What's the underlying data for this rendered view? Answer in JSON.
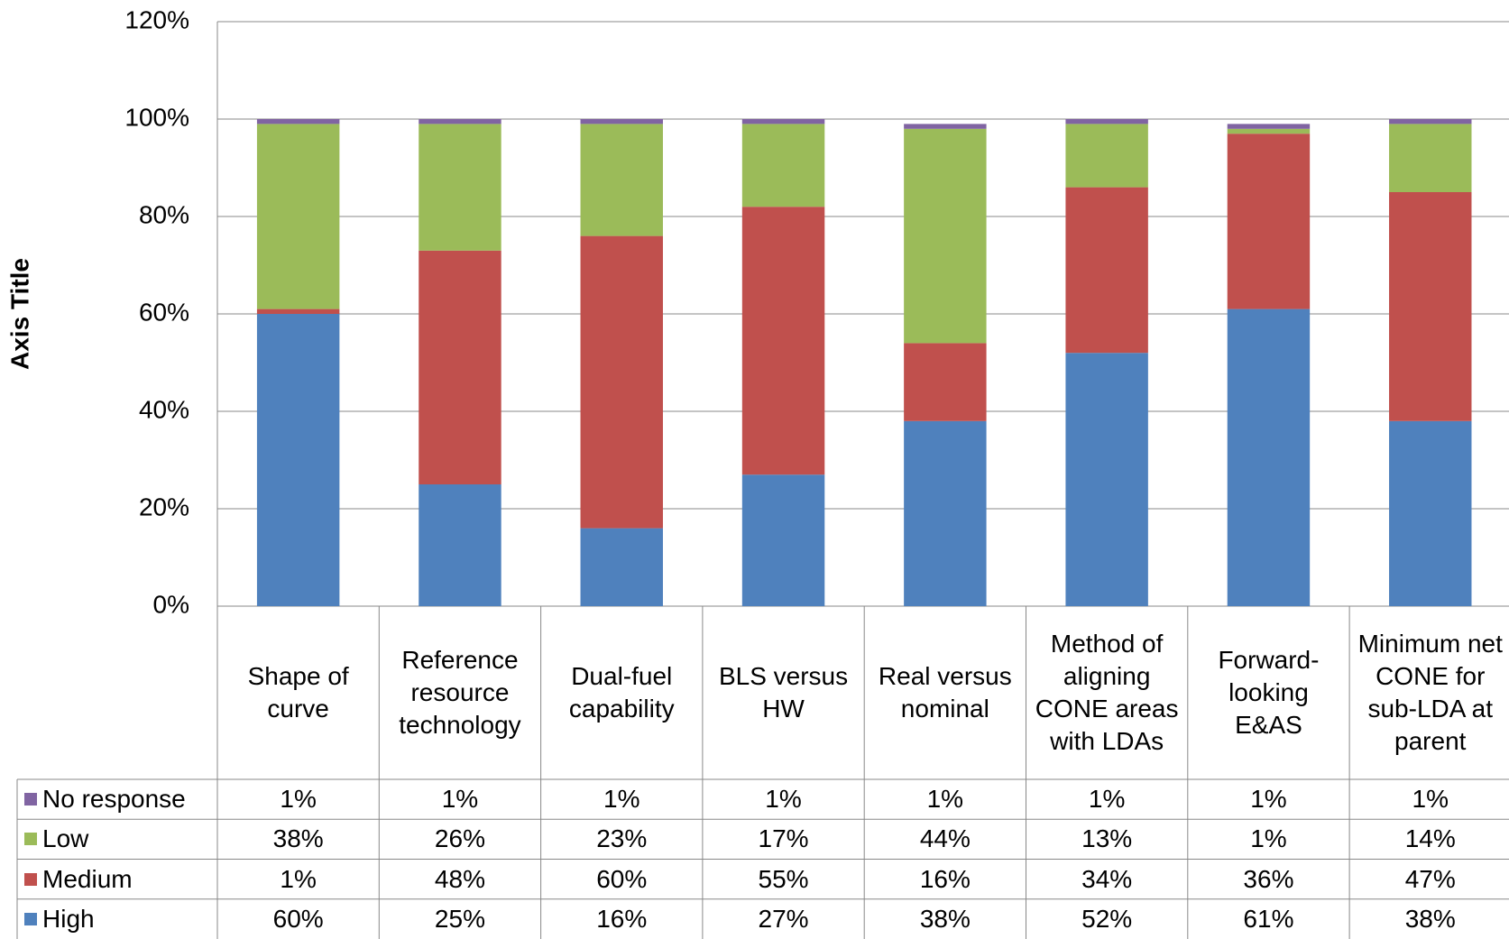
{
  "chart_data": {
    "type": "stacked_bar",
    "y_axis_title": "Axis Title",
    "categories": [
      "Shape of curve",
      "Reference resource technology",
      "Dual-fuel capability",
      "BLS versus HW",
      "Real versus nominal",
      "Method of aligning CONE areas with LDAs",
      "Forward-looking E&AS",
      "Minimum net CONE for sub-LDA at parent"
    ],
    "series": [
      {
        "name": "No response",
        "color": "#8064a2",
        "values": [
          1,
          1,
          1,
          1,
          1,
          1,
          1,
          1
        ],
        "value_labels": [
          "1%",
          "1%",
          "1%",
          "1%",
          "1%",
          "1%",
          "1%",
          "1%"
        ]
      },
      {
        "name": "Low",
        "color": "#9bbb59",
        "values": [
          38,
          26,
          23,
          17,
          44,
          13,
          1,
          14
        ],
        "value_labels": [
          "38%",
          "26%",
          "23%",
          "17%",
          "44%",
          "13%",
          "1%",
          "14%"
        ]
      },
      {
        "name": "Medium",
        "color": "#c0504d",
        "values": [
          1,
          48,
          60,
          55,
          16,
          34,
          36,
          47
        ],
        "value_labels": [
          "1%",
          "48%",
          "60%",
          "55%",
          "16%",
          "34%",
          "36%",
          "47%"
        ]
      },
      {
        "name": "High",
        "color": "#4f81bd",
        "values": [
          60,
          25,
          16,
          27,
          38,
          52,
          61,
          38
        ],
        "value_labels": [
          "60%",
          "25%",
          "16%",
          "27%",
          "38%",
          "52%",
          "61%",
          "38%"
        ]
      }
    ],
    "ylim": [
      0,
      120
    ],
    "yticks": [
      {
        "value": 0,
        "label": "0%"
      },
      {
        "value": 20,
        "label": "20%"
      },
      {
        "value": 40,
        "label": "40%"
      },
      {
        "value": 60,
        "label": "60%"
      },
      {
        "value": 80,
        "label": "80%"
      },
      {
        "value": 100,
        "label": "100%"
      },
      {
        "value": 120,
        "label": "120%"
      }
    ],
    "grid": true
  }
}
